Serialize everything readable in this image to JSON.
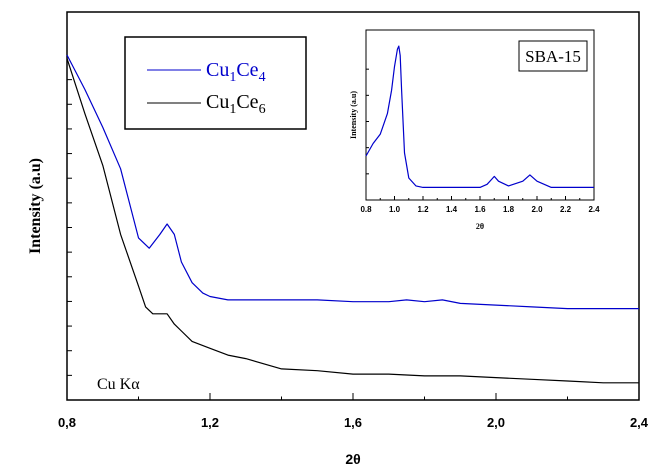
{
  "chart_data": [
    {
      "type": "line",
      "xlabel": "2θ",
      "ylabel": "Intensity (a.u)",
      "xlim": [
        0.8,
        2.4
      ],
      "ylim": [
        0,
        100
      ],
      "x_ticks": [
        "0,8",
        "1,2",
        "1,6",
        "2,0",
        "2,4"
      ],
      "y_tick_labels": "none",
      "grid": false,
      "legend_position": "top-left",
      "annotation": "Cu Kα",
      "series": [
        {
          "name": "Cu1Ce4",
          "color": "#0000cc",
          "x": [
            0.8,
            0.85,
            0.9,
            0.95,
            1.0,
            1.03,
            1.06,
            1.08,
            1.1,
            1.12,
            1.15,
            1.18,
            1.2,
            1.25,
            1.3,
            1.4,
            1.5,
            1.6,
            1.7,
            1.75,
            1.8,
            1.85,
            1.9,
            2.0,
            2.1,
            2.2,
            2.3,
            2.4
          ],
          "y": [
            100,
            90,
            79,
            67,
            47,
            44,
            48,
            51,
            48,
            40,
            34,
            31,
            30,
            29,
            29,
            29,
            29,
            28.5,
            28.5,
            29,
            28.5,
            29,
            28,
            27.5,
            27,
            26.5,
            26.5,
            26.5
          ]
        },
        {
          "name": "Cu1Ce6",
          "color": "#000000",
          "x": [
            0.8,
            0.85,
            0.9,
            0.95,
            1.0,
            1.02,
            1.04,
            1.06,
            1.08,
            1.1,
            1.12,
            1.15,
            1.2,
            1.25,
            1.3,
            1.4,
            1.5,
            1.6,
            1.7,
            1.8,
            1.9,
            2.0,
            2.1,
            2.2,
            2.3,
            2.4
          ],
          "y": [
            99,
            83,
            68,
            48,
            33,
            27,
            25,
            25,
            25,
            22,
            20,
            17,
            15,
            13,
            12,
            9,
            8.5,
            7.5,
            7.5,
            7,
            7,
            6.5,
            6,
            5.5,
            5,
            5
          ]
        }
      ]
    },
    {
      "type": "line",
      "title": "SBA-15",
      "xlabel": "2θ",
      "ylabel": "Intensity (a.u)",
      "xlim": [
        0.8,
        2.4
      ],
      "ylim": [
        0,
        100
      ],
      "x_ticks": [
        "0.8",
        "1.0",
        "1.2",
        "1.4",
        "1.6",
        "1.8",
        "2.0",
        "2.2",
        "2.4"
      ],
      "grid": false,
      "series": [
        {
          "name": "SBA-15",
          "color": "#0000cc",
          "x": [
            0.8,
            0.85,
            0.9,
            0.95,
            0.98,
            1.0,
            1.02,
            1.03,
            1.04,
            1.05,
            1.07,
            1.1,
            1.15,
            1.2,
            1.3,
            1.4,
            1.5,
            1.6,
            1.65,
            1.68,
            1.7,
            1.73,
            1.8,
            1.9,
            1.95,
            2.0,
            2.1,
            2.2,
            2.3,
            2.4
          ],
          "y": [
            28,
            36,
            42,
            55,
            70,
            85,
            96,
            98,
            92,
            70,
            30,
            14,
            9,
            8,
            8,
            8,
            8,
            8,
            10,
            13,
            15,
            12,
            9,
            12,
            16,
            12,
            8,
            8,
            8,
            8
          ]
        }
      ]
    }
  ]
}
